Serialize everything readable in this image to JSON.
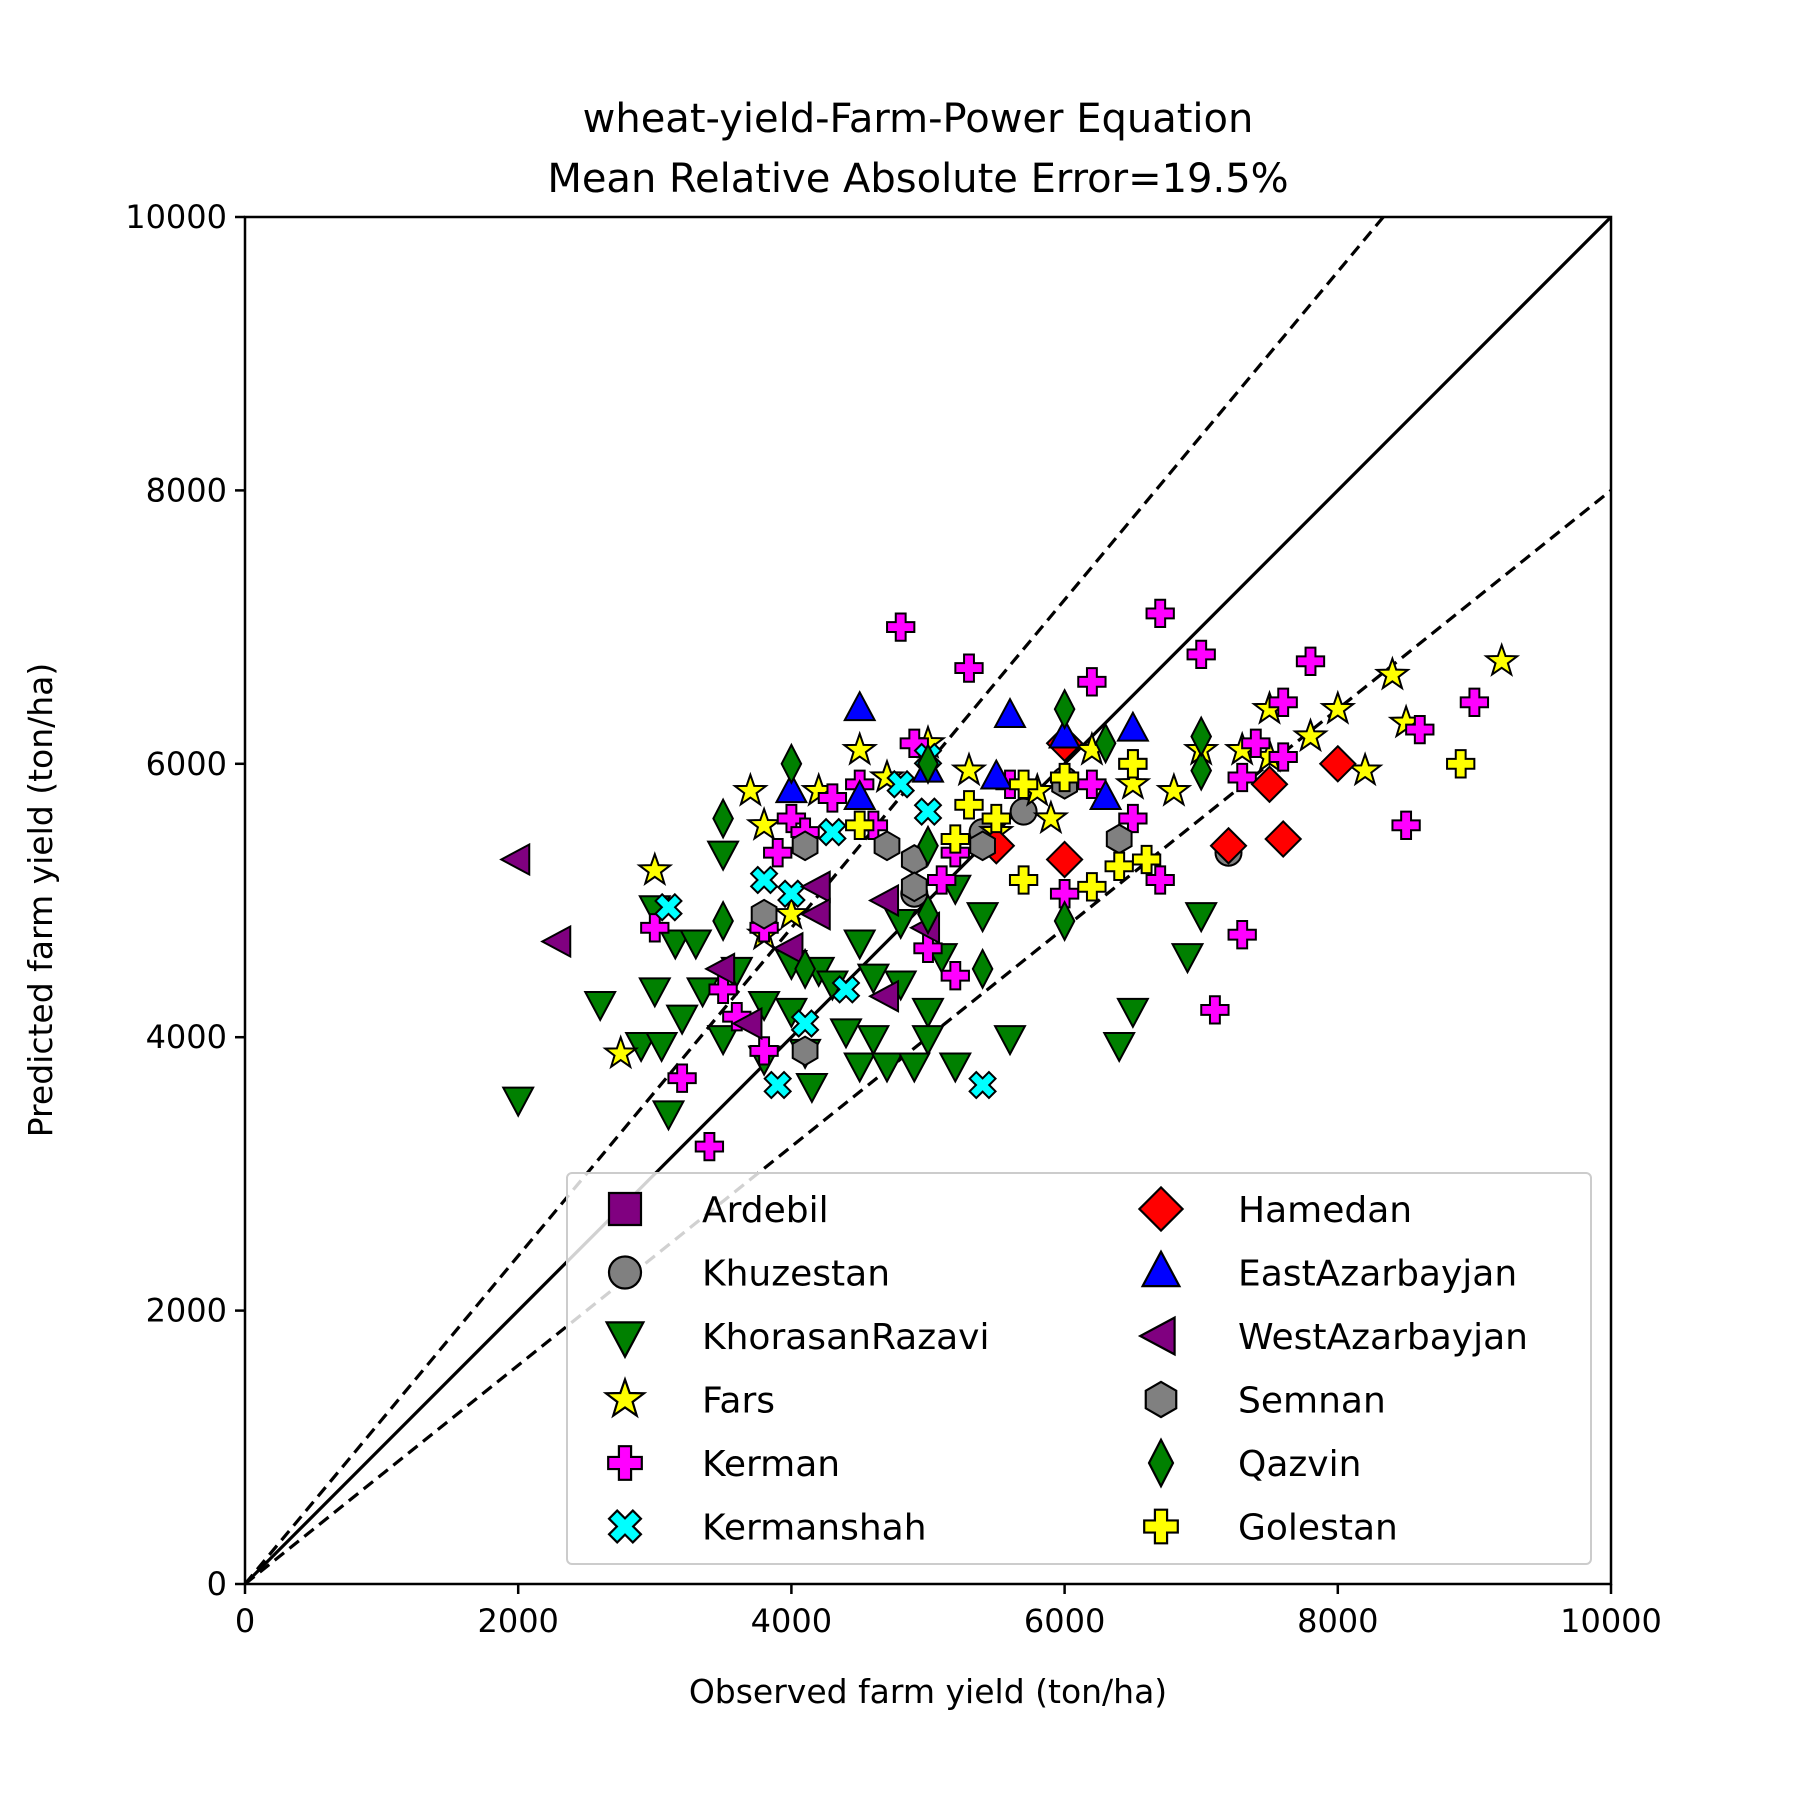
{
  "chart_data": {
    "type": "scatter",
    "title": "wheat-yield-Farm-Power Equation",
    "subtitle": "Mean Relative Absolute Error=19.5%",
    "xlabel": "Observed farm yield (ton/ha)",
    "ylabel": "Predicted farm yield (ton/ha)",
    "xlim": [
      0,
      10000
    ],
    "ylim": [
      0,
      10000
    ],
    "xticks": [
      "0",
      "2000",
      "4000",
      "6000",
      "8000",
      "10000"
    ],
    "yticks": [
      "0",
      "2000",
      "4000",
      "6000",
      "8000",
      "10000"
    ],
    "grid": false,
    "legend_position": "lower-right",
    "reference_lines": [
      {
        "kind": "identity",
        "slope": 1.0,
        "style": "solid"
      },
      {
        "kind": "upper-bound",
        "slope": 1.2,
        "style": "dashed"
      },
      {
        "kind": "lower-bound",
        "slope": 0.8,
        "style": "dashed"
      }
    ],
    "series": [
      {
        "name": "Ardebil",
        "marker": "square",
        "color": "#800080",
        "points": []
      },
      {
        "name": "Khuzestan",
        "marker": "circle",
        "color": "#808080",
        "points": [
          [
            6000,
            5880
          ],
          [
            7200,
            5350
          ],
          [
            4900,
            5050
          ],
          [
            5400,
            5500
          ],
          [
            5700,
            5650
          ]
        ]
      },
      {
        "name": "KhorasanRazavi",
        "marker": "triangle-down",
        "color": "#008000",
        "points": [
          [
            2000,
            3550
          ],
          [
            2600,
            4250
          ],
          [
            2900,
            3950
          ],
          [
            3000,
            4950
          ],
          [
            3000,
            4350
          ],
          [
            3050,
            3950
          ],
          [
            3100,
            3450
          ],
          [
            3150,
            4700
          ],
          [
            3200,
            4150
          ],
          [
            3300,
            4700
          ],
          [
            3350,
            4350
          ],
          [
            3500,
            4000
          ],
          [
            3500,
            5350
          ],
          [
            3600,
            4500
          ],
          [
            3800,
            4250
          ],
          [
            3800,
            3850
          ],
          [
            4000,
            4550
          ],
          [
            4000,
            4200
          ],
          [
            4100,
            3900
          ],
          [
            4150,
            3650
          ],
          [
            4200,
            4500
          ],
          [
            4300,
            4400
          ],
          [
            4400,
            4050
          ],
          [
            4500,
            3800
          ],
          [
            4500,
            4700
          ],
          [
            4600,
            4000
          ],
          [
            4600,
            4450
          ],
          [
            4700,
            3800
          ],
          [
            4800,
            4850
          ],
          [
            4800,
            4400
          ],
          [
            4900,
            3800
          ],
          [
            5000,
            4200
          ],
          [
            5000,
            4000
          ],
          [
            5100,
            4600
          ],
          [
            5200,
            3800
          ],
          [
            5200,
            5100
          ],
          [
            5400,
            4900
          ],
          [
            5600,
            4000
          ],
          [
            6400,
            3950
          ],
          [
            6500,
            4200
          ],
          [
            6900,
            4600
          ],
          [
            7000,
            4900
          ]
        ]
      },
      {
        "name": "Fars",
        "marker": "star",
        "color": "#ffff00",
        "points": [
          [
            2750,
            3880
          ],
          [
            3000,
            5220
          ],
          [
            3700,
            5800
          ],
          [
            3800,
            5550
          ],
          [
            3800,
            4750
          ],
          [
            4000,
            4900
          ],
          [
            4200,
            5800
          ],
          [
            4500,
            6100
          ],
          [
            4700,
            5900
          ],
          [
            5000,
            6150
          ],
          [
            5300,
            5950
          ],
          [
            5500,
            5500
          ],
          [
            5800,
            5800
          ],
          [
            5900,
            5600
          ],
          [
            6200,
            6100
          ],
          [
            6500,
            5850
          ],
          [
            6800,
            5800
          ],
          [
            7000,
            6100
          ],
          [
            7300,
            6100
          ],
          [
            7500,
            6050
          ],
          [
            7500,
            6400
          ],
          [
            7800,
            6200
          ],
          [
            8000,
            6400
          ],
          [
            8200,
            5950
          ],
          [
            8400,
            6650
          ],
          [
            8500,
            6300
          ],
          [
            9200,
            6750
          ]
        ]
      },
      {
        "name": "Kerman",
        "marker": "plus",
        "color": "#ff00ff",
        "points": [
          [
            3000,
            4800
          ],
          [
            3200,
            3700
          ],
          [
            3400,
            3200
          ],
          [
            3500,
            4350
          ],
          [
            3600,
            4150
          ],
          [
            3800,
            3900
          ],
          [
            3800,
            4800
          ],
          [
            3900,
            5350
          ],
          [
            4000,
            5600
          ],
          [
            4100,
            5500
          ],
          [
            4300,
            5750
          ],
          [
            4500,
            5850
          ],
          [
            4600,
            5550
          ],
          [
            4800,
            7000
          ],
          [
            4900,
            6150
          ],
          [
            5000,
            4650
          ],
          [
            5100,
            5150
          ],
          [
            5200,
            5350
          ],
          [
            5200,
            4450
          ],
          [
            5300,
            6700
          ],
          [
            5600,
            5850
          ],
          [
            6000,
            5050
          ],
          [
            6200,
            6600
          ],
          [
            6200,
            5850
          ],
          [
            6500,
            5600
          ],
          [
            6500,
            6000
          ],
          [
            6700,
            5150
          ],
          [
            6700,
            7100
          ],
          [
            7000,
            6800
          ],
          [
            7100,
            4200
          ],
          [
            7300,
            4750
          ],
          [
            7300,
            5900
          ],
          [
            7400,
            6150
          ],
          [
            7600,
            6450
          ],
          [
            7600,
            6050
          ],
          [
            7800,
            6750
          ],
          [
            8500,
            5550
          ],
          [
            8600,
            6250
          ],
          [
            9000,
            6450
          ]
        ]
      },
      {
        "name": "Kermanshah",
        "marker": "x",
        "color": "#00ffff",
        "points": [
          [
            3100,
            4950
          ],
          [
            3800,
            5150
          ],
          [
            3900,
            3650
          ],
          [
            4000,
            5050
          ],
          [
            4100,
            4100
          ],
          [
            4300,
            5500
          ],
          [
            4400,
            4350
          ],
          [
            4800,
            5850
          ],
          [
            5000,
            6050
          ],
          [
            5000,
            5650
          ],
          [
            5400,
            3650
          ]
        ]
      },
      {
        "name": "Hamedan",
        "marker": "diamond",
        "color": "#ff0000",
        "points": [
          [
            5500,
            5400
          ],
          [
            6000,
            5300
          ],
          [
            6000,
            6150
          ],
          [
            7200,
            5400
          ],
          [
            7500,
            5850
          ],
          [
            7600,
            5450
          ],
          [
            8000,
            6000
          ]
        ]
      },
      {
        "name": "EastAzarbayjan",
        "marker": "triangle-up",
        "color": "#0000ff",
        "points": [
          [
            4000,
            5800
          ],
          [
            4500,
            6400
          ],
          [
            4500,
            5750
          ],
          [
            5000,
            5950
          ],
          [
            5500,
            5900
          ],
          [
            5600,
            6350
          ],
          [
            6000,
            6200
          ],
          [
            6300,
            5750
          ],
          [
            6500,
            6250
          ]
        ]
      },
      {
        "name": "WestAzarbayjan",
        "marker": "triangle-left",
        "color": "#800080",
        "points": [
          [
            2000,
            5300
          ],
          [
            2300,
            4700
          ],
          [
            3500,
            4500
          ],
          [
            3700,
            4100
          ],
          [
            4000,
            4650
          ],
          [
            4200,
            5100
          ],
          [
            4200,
            4900
          ],
          [
            4700,
            4300
          ],
          [
            4700,
            5000
          ],
          [
            5000,
            4800
          ]
        ]
      },
      {
        "name": "Semnan",
        "marker": "hexagon",
        "color": "#808080",
        "points": [
          [
            3800,
            4900
          ],
          [
            4100,
            3900
          ],
          [
            4100,
            5400
          ],
          [
            4700,
            5400
          ],
          [
            4900,
            5300
          ],
          [
            4900,
            5100
          ],
          [
            5400,
            5400
          ],
          [
            6000,
            5850
          ],
          [
            6400,
            5450
          ]
        ]
      },
      {
        "name": "Qazvin",
        "marker": "thin-diamond",
        "color": "#008000",
        "points": [
          [
            3500,
            4850
          ],
          [
            3500,
            5600
          ],
          [
            4000,
            6000
          ],
          [
            4100,
            4500
          ],
          [
            5000,
            4900
          ],
          [
            5000,
            6000
          ],
          [
            5000,
            5400
          ],
          [
            5400,
            4500
          ],
          [
            6000,
            4850
          ],
          [
            6000,
            6400
          ],
          [
            6300,
            6150
          ],
          [
            7000,
            5950
          ],
          [
            7000,
            6200
          ]
        ]
      },
      {
        "name": "Golestan",
        "marker": "plus",
        "color": "#ffff00",
        "points": [
          [
            4500,
            5550
          ],
          [
            5200,
            5450
          ],
          [
            5300,
            5700
          ],
          [
            5500,
            5600
          ],
          [
            5700,
            5150
          ],
          [
            5700,
            5850
          ],
          [
            6000,
            5900
          ],
          [
            6200,
            5100
          ],
          [
            6400,
            5250
          ],
          [
            6500,
            6000
          ],
          [
            6600,
            5300
          ],
          [
            8900,
            6000
          ]
        ]
      }
    ]
  }
}
